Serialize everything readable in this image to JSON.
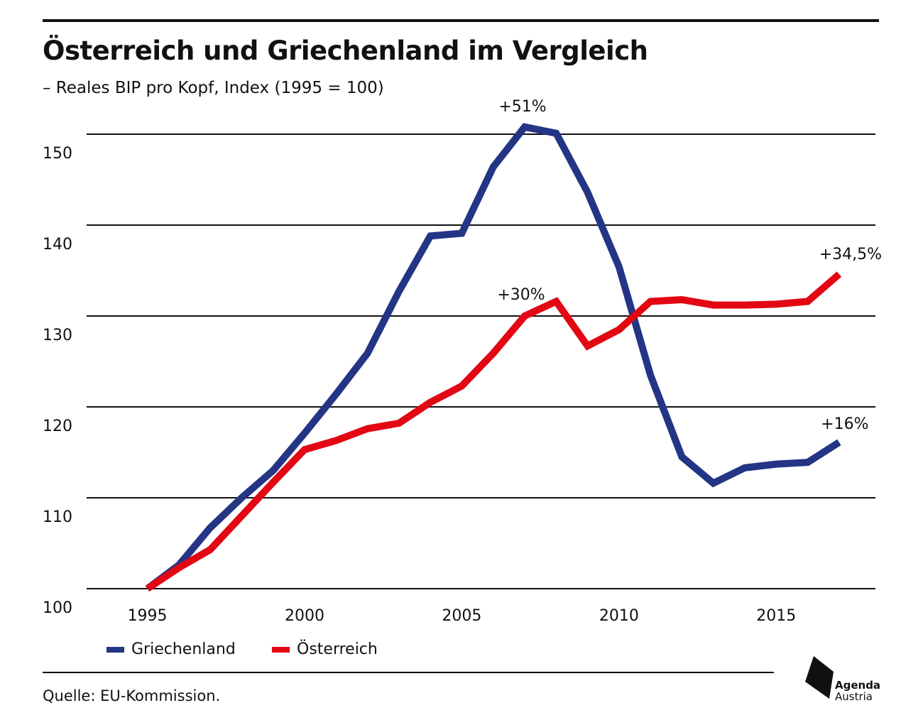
{
  "header": {
    "title": "Österreich und Griechenland im Vergleich",
    "subtitle": "– Reales BIP pro Kopf, Index (1995 = 100)"
  },
  "footer": {
    "source": "Quelle: EU-Kommission.",
    "logo_line1": "Agenda",
    "logo_line2": "Austria"
  },
  "chart_data": {
    "type": "line",
    "title": "Österreich und Griechenland im Vergleich",
    "subtitle": "– Reales BIP pro Kopf, Index (1995 = 100)",
    "xlabel": "",
    "ylabel": "",
    "x": [
      1995,
      1996,
      1997,
      1998,
      1999,
      2000,
      2001,
      2002,
      2003,
      2004,
      2005,
      2006,
      2007,
      2008,
      2009,
      2010,
      2011,
      2012,
      2013,
      2014,
      2015,
      2016,
      2017
    ],
    "xlim": [
      1993.7,
      2018.2
    ],
    "ylim": [
      100,
      155
    ],
    "xticks": [
      1995,
      2000,
      2005,
      2010,
      2015
    ],
    "yticks": [
      100,
      110,
      120,
      130,
      140,
      150
    ],
    "grid": true,
    "legend_position": "bottom-left",
    "series": [
      {
        "name": "Griechenland",
        "color": "#233584",
        "values": [
          100,
          102.6,
          106.7,
          110.0,
          113.0,
          117.1,
          121.4,
          125.9,
          132.7,
          138.8,
          139.1,
          146.4,
          150.8,
          150.1,
          143.6,
          135.4,
          123.5,
          114.5,
          111.6,
          113.3,
          113.7,
          113.9,
          116.1
        ]
      },
      {
        "name": "Österreich",
        "color": "#e30613",
        "values": [
          100,
          102.3,
          104.3,
          108.0,
          111.7,
          115.3,
          116.3,
          117.6,
          118.2,
          120.5,
          122.3,
          125.9,
          130.0,
          131.6,
          126.7,
          128.5,
          131.6,
          131.8,
          131.2,
          131.2,
          131.3,
          131.6,
          134.6
        ]
      }
    ],
    "annotations": [
      {
        "text": "+51%",
        "series": "Griechenland",
        "x": 2007
      },
      {
        "text": "+30%",
        "series": "Österreich",
        "x": 2007
      },
      {
        "text": "+34,5%",
        "series": "Österreich",
        "x": 2017
      },
      {
        "text": "+16%",
        "series": "Griechenland",
        "x": 2017
      }
    ]
  }
}
